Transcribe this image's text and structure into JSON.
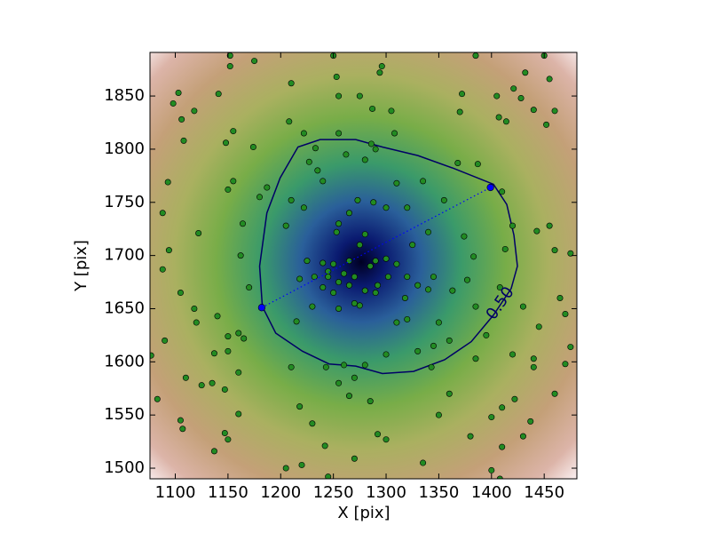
{
  "chart_data": {
    "type": "scatter",
    "xlabel": "X [pix]",
    "ylabel": "Y [pix]",
    "xlim": [
      1076,
      1481
    ],
    "ylim": [
      1490,
      1891
    ],
    "xticks": [
      1100,
      1150,
      1200,
      1250,
      1300,
      1350,
      1400,
      1450
    ],
    "yticks": [
      1500,
      1550,
      1600,
      1650,
      1700,
      1750,
      1800,
      1850
    ],
    "points": {
      "color": "#228b22",
      "x": [
        1098,
        1103,
        1106,
        1108,
        1118,
        1141,
        1152,
        1152,
        1175,
        1210,
        1222,
        1250,
        1253,
        1255,
        1275,
        1287,
        1294,
        1296,
        1308,
        1305,
        1370,
        1372,
        1385,
        1405,
        1407,
        1414,
        1421,
        1428,
        1432,
        1440,
        1450,
        1455,
        1460,
        1452,
        1148,
        1155,
        1174,
        1208,
        1227,
        1233,
        1280,
        1286,
        1290,
        1262,
        1310,
        1368,
        1387,
        1093,
        1088,
        1122,
        1150,
        1155,
        1164,
        1180,
        1162,
        1187,
        1170,
        1105,
        1094,
        1088,
        1118,
        1120,
        1140,
        1150,
        1160,
        1150,
        1165,
        1160,
        1137,
        1125,
        1135,
        1147,
        1110,
        1090,
        1077,
        1083,
        1105,
        1107,
        1147,
        1150,
        1137,
        1160,
        1255,
        1265,
        1273,
        1288,
        1300,
        1253,
        1280,
        1275,
        1265,
        1250,
        1245,
        1260,
        1270,
        1285,
        1290,
        1300,
        1310,
        1302,
        1292,
        1280,
        1265,
        1255,
        1245,
        1225,
        1218,
        1232,
        1240,
        1250,
        1270,
        1290,
        1320,
        1330,
        1318,
        1340,
        1345,
        1325,
        1340,
        1320,
        1335,
        1355,
        1240,
        1235,
        1255,
        1210,
        1205,
        1222,
        1240,
        1215,
        1230,
        1255,
        1275,
        1310,
        1320,
        1350,
        1360,
        1345,
        1385,
        1383,
        1377,
        1363,
        1374,
        1410,
        1420,
        1413,
        1408,
        1443,
        1455,
        1430,
        1460,
        1475,
        1465,
        1470,
        1475,
        1470,
        1420,
        1440,
        1445,
        1385,
        1395,
        1360,
        1343,
        1330,
        1400,
        1410,
        1422,
        1440,
        1460,
        1437,
        1430,
        1410,
        1400,
        1408,
        1380,
        1350,
        1335,
        1300,
        1292,
        1285,
        1265,
        1270,
        1255,
        1218,
        1210,
        1243,
        1260,
        1280,
        1300,
        1230,
        1242,
        1245,
        1270,
        1220,
        1205
      ],
      "y": [
        1843,
        1853,
        1828,
        1808,
        1836,
        1852,
        1878,
        1888,
        1883,
        1862,
        1815,
        1888,
        1868,
        1850,
        1850,
        1838,
        1872,
        1878,
        1815,
        1836,
        1835,
        1852,
        1888,
        1850,
        1830,
        1826,
        1857,
        1848,
        1872,
        1837,
        1888,
        1866,
        1836,
        1823,
        1806,
        1817,
        1802,
        1826,
        1788,
        1801,
        1790,
        1805,
        1800,
        1795,
        1768,
        1787,
        1786,
        1769,
        1740,
        1721,
        1762,
        1770,
        1730,
        1755,
        1700,
        1764,
        1670,
        1665,
        1705,
        1687,
        1650,
        1637,
        1643,
        1624,
        1627,
        1610,
        1622,
        1590,
        1608,
        1578,
        1580,
        1574,
        1585,
        1620,
        1606,
        1565,
        1545,
        1537,
        1533,
        1527,
        1516,
        1551,
        1730,
        1740,
        1752,
        1750,
        1745,
        1722,
        1720,
        1710,
        1695,
        1692,
        1685,
        1683,
        1680,
        1690,
        1695,
        1697,
        1692,
        1680,
        1672,
        1667,
        1672,
        1675,
        1680,
        1695,
        1678,
        1680,
        1670,
        1665,
        1655,
        1665,
        1680,
        1672,
        1660,
        1668,
        1680,
        1710,
        1722,
        1745,
        1770,
        1752,
        1770,
        1780,
        1815,
        1752,
        1728,
        1745,
        1693,
        1638,
        1652,
        1650,
        1653,
        1637,
        1640,
        1637,
        1620,
        1615,
        1652,
        1699,
        1677,
        1667,
        1718,
        1760,
        1728,
        1706,
        1670,
        1723,
        1728,
        1652,
        1705,
        1702,
        1660,
        1645,
        1614,
        1598,
        1607,
        1603,
        1633,
        1603,
        1625,
        1570,
        1595,
        1610,
        1548,
        1557,
        1565,
        1595,
        1570,
        1544,
        1530,
        1520,
        1498,
        1490,
        1530,
        1550,
        1505,
        1527,
        1532,
        1563,
        1568,
        1585,
        1580,
        1558,
        1595,
        1595,
        1597,
        1597,
        1607,
        1542,
        1521,
        1492,
        1509,
        1503,
        1500
      ]
    },
    "markers": {
      "color": "#0000ff",
      "x": [
        1182,
        1399
      ],
      "y": [
        1651,
        1764
      ]
    },
    "contour": {
      "label": "0.50",
      "color": "#000066",
      "x": [
        1182.6,
        1180,
        1186.9,
        1199.5,
        1216.4,
        1237.4,
        1271.2,
        1296.5,
        1330.2,
        1363.9,
        1401.9,
        1414.5,
        1421.3,
        1424.6,
        1418.7,
        1401.9,
        1380.8,
        1355.5,
        1326,
        1296.5,
        1271.2,
        1245.9,
        1220.6,
        1195.3
      ],
      "y": [
        1652,
        1690,
        1740,
        1773,
        1802,
        1809,
        1809,
        1802,
        1794,
        1782,
        1767,
        1748,
        1719,
        1690,
        1669,
        1644,
        1619,
        1602,
        1591,
        1589,
        1596,
        1598,
        1610,
        1627
      ]
    }
  }
}
